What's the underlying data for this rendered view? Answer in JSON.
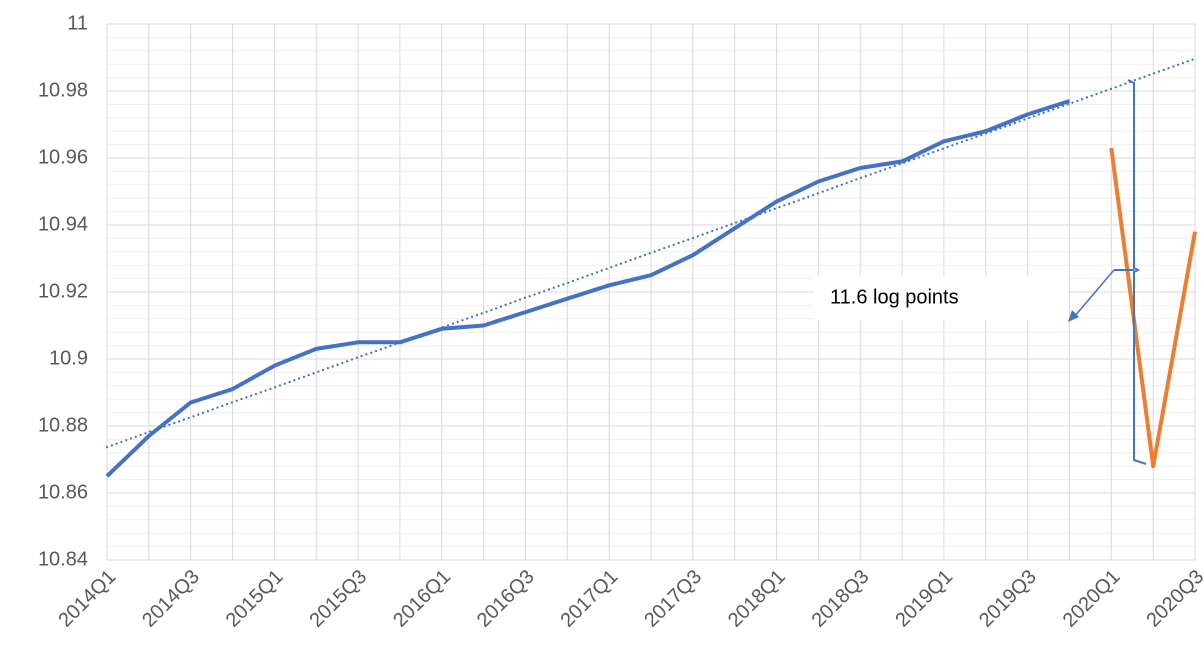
{
  "chart_data": {
    "type": "line",
    "categories": [
      "2014Q1",
      null,
      "2014Q3",
      null,
      "2015Q1",
      null,
      "2015Q3",
      null,
      "2016Q1",
      null,
      "2016Q3",
      null,
      "2017Q1",
      null,
      "2017Q3",
      null,
      "2018Q1",
      null,
      "2018Q3",
      null,
      "2019Q1",
      null,
      "2019Q3",
      null,
      "2020Q1",
      null,
      "2020Q3"
    ],
    "series": [
      {
        "color": "#4472c4",
        "style": "solid",
        "values": [
          10.865,
          10.877,
          10.887,
          10.891,
          10.898,
          10.903,
          10.905,
          10.905,
          10.909,
          10.91,
          10.914,
          10.918,
          10.922,
          10.925,
          10.931,
          10.939,
          10.947,
          10.953,
          10.957,
          10.959,
          10.965,
          10.968,
          10.973,
          10.977,
          null,
          null,
          null
        ]
      },
      {
        "color": "#ed7d31",
        "style": "solid",
        "values": [
          null,
          null,
          null,
          null,
          null,
          null,
          null,
          null,
          null,
          null,
          null,
          null,
          null,
          null,
          null,
          null,
          null,
          null,
          null,
          null,
          null,
          null,
          null,
          null,
          10.963,
          10.868,
          10.938
        ]
      },
      {
        "color": "#4472c4",
        "style": "dotted",
        "values": [
          10.8737,
          10.8782,
          10.8826,
          10.8871,
          10.8915,
          10.896,
          10.9005,
          10.9049,
          10.9094,
          10.9138,
          10.9183,
          10.9227,
          10.9272,
          10.9317,
          10.9361,
          10.9406,
          10.945,
          10.9495,
          10.954,
          10.9584,
          10.9629,
          10.9673,
          10.9718,
          10.9762,
          10.9807,
          10.9852,
          10.9896
        ]
      }
    ],
    "ylim": [
      10.84,
      11
    ],
    "yticks": [
      10.84,
      10.86,
      10.88,
      10.9,
      10.92,
      10.94,
      10.96,
      10.98,
      11
    ],
    "y_minor_ticks": [
      10.844,
      10.848,
      10.852,
      10.856,
      10.864,
      10.868,
      10.872,
      10.876,
      10.884,
      10.888,
      10.892,
      10.896,
      10.904,
      10.908,
      10.912,
      10.916,
      10.924,
      10.928,
      10.932,
      10.936,
      10.944,
      10.948,
      10.952,
      10.956,
      10.964,
      10.968,
      10.972,
      10.976,
      10.984,
      10.988,
      10.992,
      10.996
    ],
    "grid": true,
    "annotation": "11.6 log points"
  }
}
